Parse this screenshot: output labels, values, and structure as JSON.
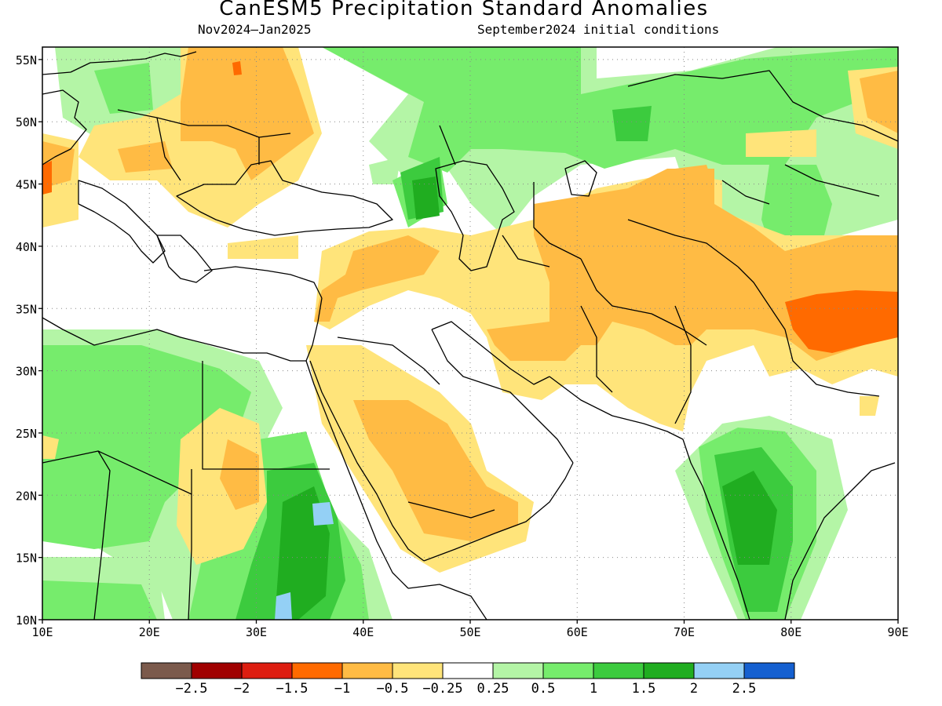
{
  "header": {
    "title": "CanESM5 Precipitation Standard Anomalies",
    "period": "Nov2024–Jan2025",
    "initial_conditions": "September2024 initial conditions"
  },
  "map": {
    "lon_range": [
      10,
      90
    ],
    "lat_range": [
      10,
      56
    ],
    "lat_ticks": [
      {
        "value": 10,
        "label": "10N"
      },
      {
        "value": 15,
        "label": "15N"
      },
      {
        "value": 20,
        "label": "20N"
      },
      {
        "value": 25,
        "label": "25N"
      },
      {
        "value": 30,
        "label": "30N"
      },
      {
        "value": 35,
        "label": "35N"
      },
      {
        "value": 40,
        "label": "40N"
      },
      {
        "value": 45,
        "label": "45N"
      },
      {
        "value": 50,
        "label": "50N"
      },
      {
        "value": 55,
        "label": "55N"
      }
    ],
    "lon_ticks": [
      {
        "value": 10,
        "label": "10E"
      },
      {
        "value": 20,
        "label": "20E"
      },
      {
        "value": 30,
        "label": "30E"
      },
      {
        "value": 40,
        "label": "40E"
      },
      {
        "value": 50,
        "label": "50E"
      },
      {
        "value": 60,
        "label": "60E"
      },
      {
        "value": 70,
        "label": "70E"
      },
      {
        "value": 80,
        "label": "80E"
      },
      {
        "value": 90,
        "label": "90E"
      }
    ],
    "grid": "dotted"
  },
  "colorbar": {
    "colors": [
      "#7b5a4c",
      "#a00000",
      "#dd1d10",
      "#ff6a00",
      "#ffbb44",
      "#ffe47a",
      "#ffffff",
      "#b4f5a6",
      "#76ec6c",
      "#3ccb3e",
      "#20ad20",
      "#94d0f5",
      "#1560d0"
    ],
    "labels": [
      {
        "value": -2.5,
        "label": "−2.5"
      },
      {
        "value": -2,
        "label": "−2"
      },
      {
        "value": -1.5,
        "label": "−1.5"
      },
      {
        "value": -1,
        "label": "−1"
      },
      {
        "value": -0.5,
        "label": "−0.5"
      },
      {
        "value": -0.25,
        "label": "−0.25"
      },
      {
        "value": 0.25,
        "label": "0.25"
      },
      {
        "value": 0.5,
        "label": "0.5"
      },
      {
        "value": 1,
        "label": "1"
      },
      {
        "value": 1.5,
        "label": "1.5"
      },
      {
        "value": 2,
        "label": "2"
      },
      {
        "value": 2.5,
        "label": "2.5"
      }
    ]
  },
  "anomaly_regions": [
    {
      "region": "central-asia-kazakhstan",
      "category": "0.5 to 1",
      "color": "#76ec6c"
    },
    {
      "region": "eastern-europe-ukraine",
      "category": "-1 to -0.5",
      "color": "#ffbb44"
    },
    {
      "region": "arabian-peninsula",
      "category": "-1 to -0.5",
      "color": "#ffbb44"
    },
    {
      "region": "western-himalaya-tibet",
      "category": "-1.5 to -1",
      "color": "#ff6a00"
    },
    {
      "region": "east-africa-ethiopia",
      "category": "1 to 2",
      "color": "#3ccb3e"
    },
    {
      "region": "peninsular-india",
      "category": "1 to 1.5",
      "color": "#3ccb3e"
    },
    {
      "region": "sahara-libya-chad",
      "category": "0.25 to 1",
      "color": "#76ec6c"
    }
  ]
}
